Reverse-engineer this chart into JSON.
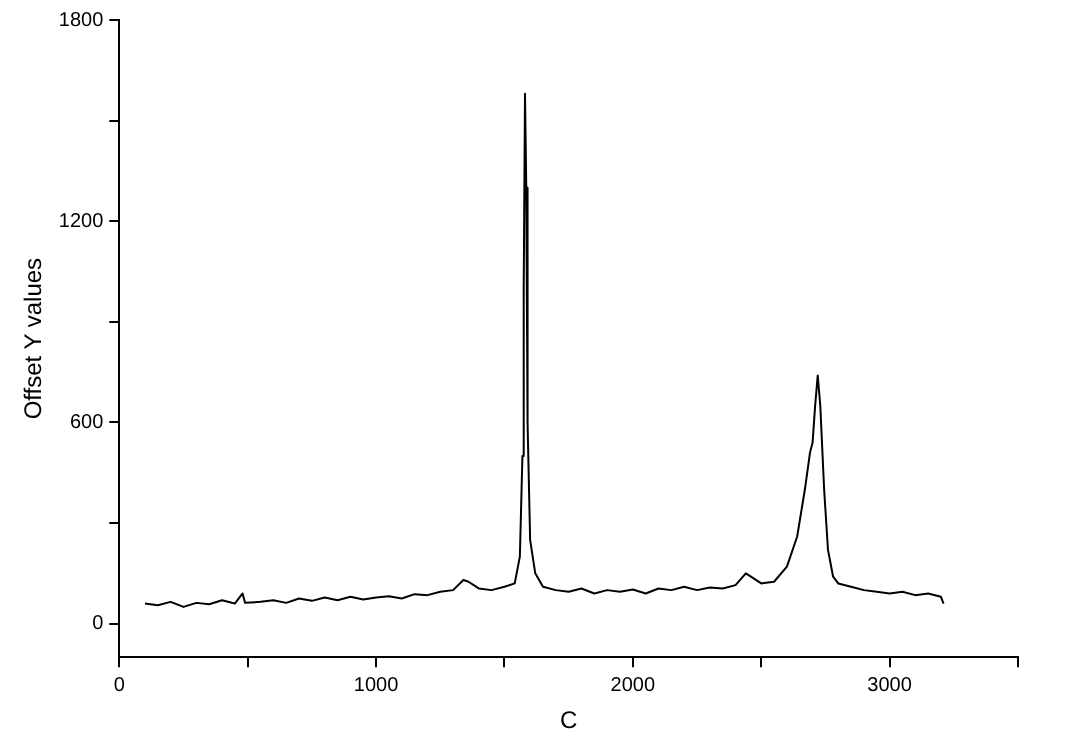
{
  "chart_data": {
    "type": "line",
    "xlabel": "C",
    "ylabel": "Offset Y values",
    "xlim": [
      0,
      3500
    ],
    "ylim": [
      -100,
      1800
    ],
    "xticks": [
      0,
      {
        "value": 500,
        "label": null
      },
      1000,
      {
        "value": 1500,
        "label": null
      },
      2000,
      {
        "value": 2500,
        "label": null
      },
      3000,
      {
        "value": 3500,
        "label": null
      }
    ],
    "yticks": [
      0,
      {
        "value": 300,
        "label": null
      },
      600,
      {
        "value": 900,
        "label": null
      },
      1200,
      {
        "value": 1500,
        "label": null
      },
      1800
    ],
    "grid": false,
    "legend": false,
    "marker": "none",
    "line_style": "solid",
    "series": [
      {
        "color": "#000000",
        "x": [
          100,
          150,
          200,
          250,
          300,
          350,
          400,
          450,
          480,
          490,
          550,
          600,
          650,
          700,
          750,
          800,
          850,
          900,
          950,
          1000,
          1050,
          1100,
          1150,
          1200,
          1250,
          1300,
          1340,
          1360,
          1400,
          1450,
          1500,
          1540,
          1560,
          1570,
          1575,
          1580,
          1585,
          1590,
          1600,
          1620,
          1650,
          1700,
          1750,
          1800,
          1850,
          1900,
          1950,
          2000,
          2050,
          2100,
          2150,
          2200,
          2250,
          2300,
          2350,
          2400,
          2440,
          2460,
          2500,
          2550,
          2600,
          2640,
          2670,
          2690,
          2700,
          2710,
          2720,
          2730,
          2745,
          2760,
          2780,
          2800,
          2850,
          2900,
          2950,
          3000,
          3050,
          3100,
          3150,
          3200,
          3210
        ],
        "values": [
          60,
          55,
          65,
          50,
          62,
          58,
          70,
          60,
          90,
          62,
          65,
          70,
          62,
          75,
          68,
          78,
          70,
          80,
          72,
          78,
          82,
          75,
          88,
          85,
          95,
          100,
          130,
          125,
          105,
          100,
          110,
          120,
          200,
          500,
          1000,
          1580,
          1300,
          600,
          250,
          150,
          110,
          100,
          95,
          105,
          90,
          100,
          95,
          102,
          90,
          105,
          100,
          110,
          100,
          108,
          105,
          115,
          150,
          140,
          120,
          125,
          170,
          260,
          400,
          510,
          540,
          650,
          740,
          650,
          400,
          220,
          140,
          120,
          110,
          100,
          95,
          90,
          95,
          85,
          90,
          80,
          60
        ]
      }
    ]
  }
}
